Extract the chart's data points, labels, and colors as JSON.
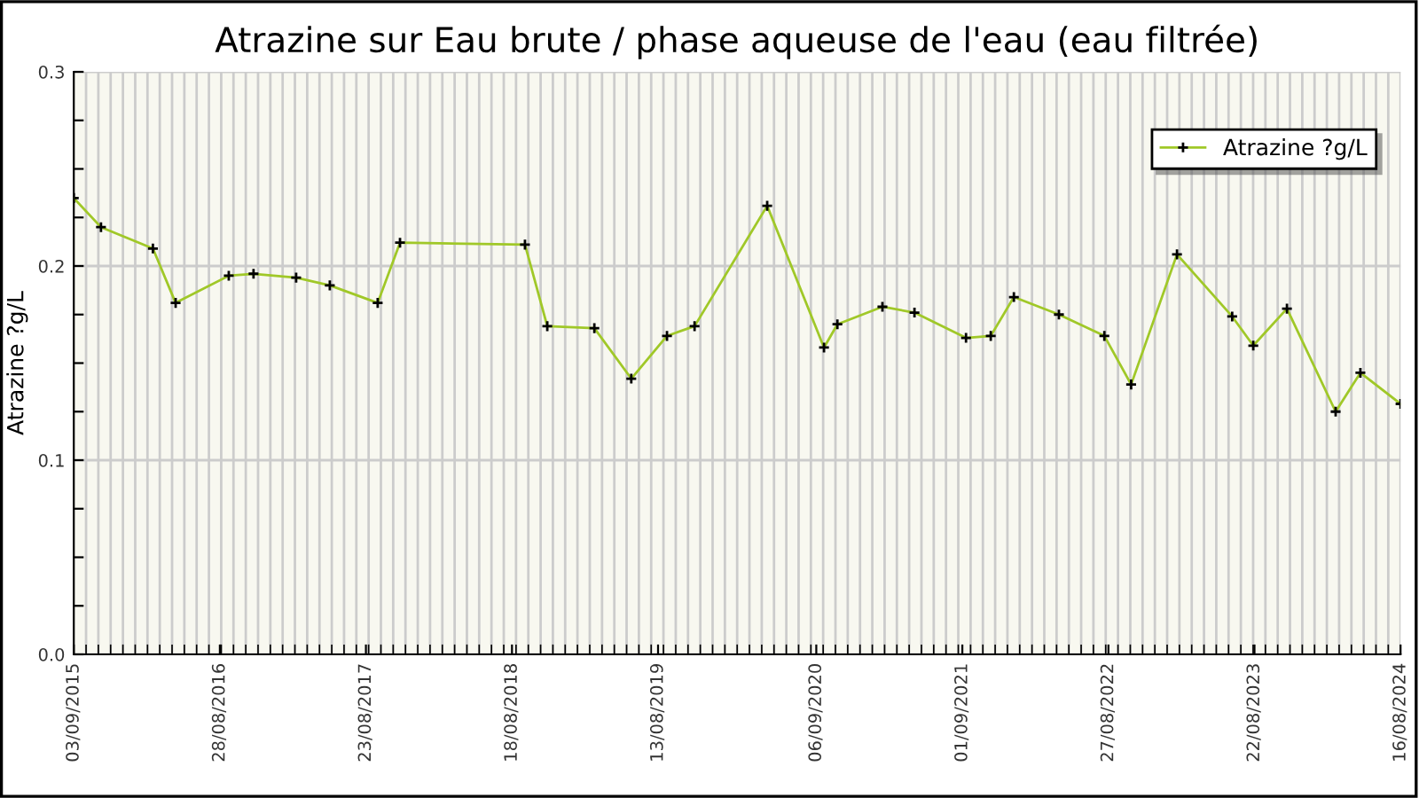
{
  "chart_data": {
    "type": "line",
    "title": "Atrazine sur Eau brute / phase aqueuse de l'eau (eau filtrée)",
    "ylabel": "Atrazine ?g/L",
    "x": [
      "2015-09-03",
      "2015-11-09",
      "2016-03-16",
      "2016-05-11",
      "2016-09-19",
      "2016-11-19",
      "2017-03-04",
      "2017-05-26",
      "2017-09-21",
      "2017-11-15",
      "2018-09-19",
      "2018-11-13",
      "2019-03-09",
      "2019-06-08",
      "2019-09-04",
      "2019-11-11",
      "2020-05-08",
      "2020-09-25",
      "2020-10-28",
      "2021-02-16",
      "2021-05-06",
      "2021-09-10",
      "2021-11-10",
      "2022-01-06",
      "2022-04-27",
      "2022-08-17",
      "2022-10-22",
      "2023-02-12",
      "2023-06-28",
      "2023-08-19",
      "2023-11-10",
      "2024-03-09",
      "2024-05-09",
      "2024-08-16"
    ],
    "series": [
      {
        "name": "Atrazine ?g/L",
        "color": "#a0c828",
        "values": [
          0.235,
          0.22,
          0.209,
          0.181,
          0.195,
          0.196,
          0.194,
          0.19,
          0.181,
          0.212,
          0.211,
          0.169,
          0.168,
          0.142,
          0.164,
          0.169,
          0.231,
          0.158,
          0.17,
          0.179,
          0.176,
          0.163,
          0.164,
          0.184,
          0.175,
          0.164,
          0.139,
          0.206,
          0.174,
          0.159,
          0.178,
          0.125,
          0.145,
          0.129
        ]
      }
    ],
    "xlim": [
      "2015-09-03",
      "2024-08-16"
    ],
    "xticks": [
      {
        "value": "2015-09-03",
        "label": "03/09/2015"
      },
      {
        "value": "2016-08-28",
        "label": "28/08/2016"
      },
      {
        "value": "2017-08-23",
        "label": "23/08/2017"
      },
      {
        "value": "2018-08-18",
        "label": "18/08/2018"
      },
      {
        "value": "2019-08-13",
        "label": "13/08/2019"
      },
      {
        "value": "2020-09-06",
        "label": "06/09/2020"
      },
      {
        "value": "2021-09-01",
        "label": "01/09/2021"
      },
      {
        "value": "2022-08-27",
        "label": "27/08/2022"
      },
      {
        "value": "2023-08-22",
        "label": "22/08/2023"
      },
      {
        "value": "2024-08-16",
        "label": "16/08/2024"
      }
    ],
    "ylim": [
      0,
      0.3
    ],
    "yticks": [
      {
        "value": 0,
        "label": "0.0"
      },
      {
        "value": 0.025,
        "label": null
      },
      {
        "value": 0.05,
        "label": null
      },
      {
        "value": 0.075,
        "label": null
      },
      0.1,
      {
        "value": 0.125,
        "label": null
      },
      {
        "value": 0.15,
        "label": null
      },
      {
        "value": 0.175,
        "label": null
      },
      0.2,
      {
        "value": 0.225,
        "label": null
      },
      {
        "value": 0.25,
        "label": null
      },
      {
        "value": 0.275,
        "label": null
      },
      0.3
    ],
    "grid": true,
    "legend": "top right",
    "marker": "cross",
    "line_style": "solid"
  }
}
